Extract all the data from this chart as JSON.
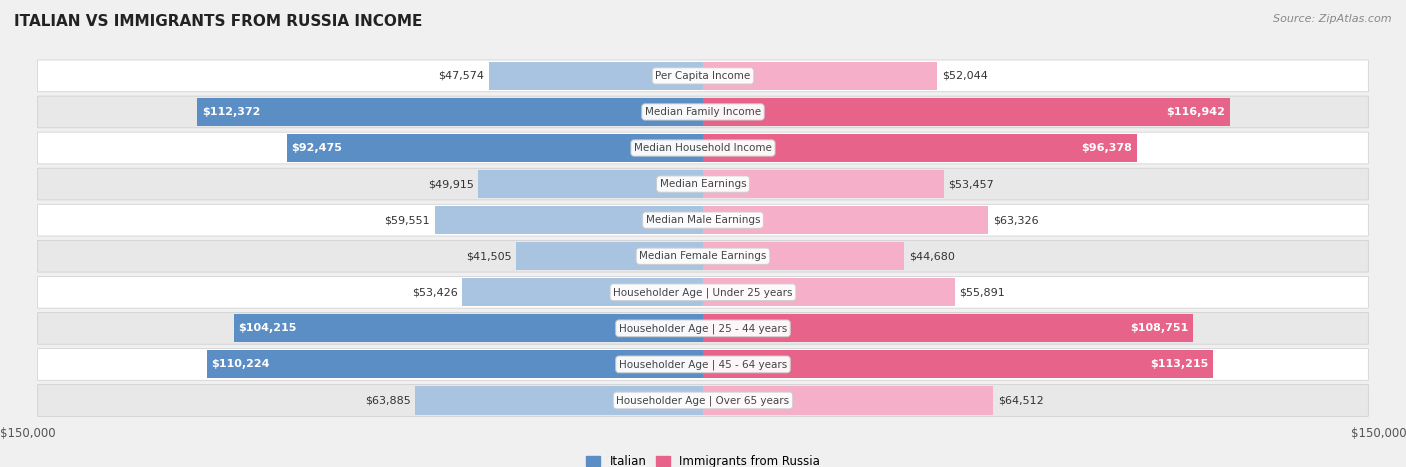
{
  "title": "ITALIAN VS IMMIGRANTS FROM RUSSIA INCOME",
  "source": "Source: ZipAtlas.com",
  "max_value": 150000,
  "categories": [
    "Per Capita Income",
    "Median Family Income",
    "Median Household Income",
    "Median Earnings",
    "Median Male Earnings",
    "Median Female Earnings",
    "Householder Age | Under 25 years",
    "Householder Age | 25 - 44 years",
    "Householder Age | 45 - 64 years",
    "Householder Age | Over 65 years"
  ],
  "italian_values": [
    47574,
    112372,
    92475,
    49915,
    59551,
    41505,
    53426,
    104215,
    110224,
    63885
  ],
  "russia_values": [
    52044,
    116942,
    96378,
    53457,
    63326,
    44680,
    55891,
    108751,
    113215,
    64512
  ],
  "italian_labels": [
    "$47,574",
    "$112,372",
    "$92,475",
    "$49,915",
    "$59,551",
    "$41,505",
    "$53,426",
    "$104,215",
    "$110,224",
    "$63,885"
  ],
  "russia_labels": [
    "$52,044",
    "$116,942",
    "$96,378",
    "$53,457",
    "$63,326",
    "$44,680",
    "$55,891",
    "$108,751",
    "$113,215",
    "$64,512"
  ],
  "italian_color_light": "#a8c4e0",
  "italian_color_dark": "#5b8ec4",
  "russia_color_light": "#f5afc8",
  "russia_color_dark": "#e8638a",
  "bg_color": "#f0f0f0",
  "row_bg": "#ffffff",
  "row_alt_bg": "#e8e8e8",
  "label_threshold": 80000,
  "legend_italian": "Italian",
  "legend_russia": "Immigrants from Russia",
  "title_fontsize": 11,
  "source_fontsize": 8,
  "bar_label_fontsize": 8,
  "category_fontsize": 7.5,
  "axis_label_fontsize": 8.5
}
